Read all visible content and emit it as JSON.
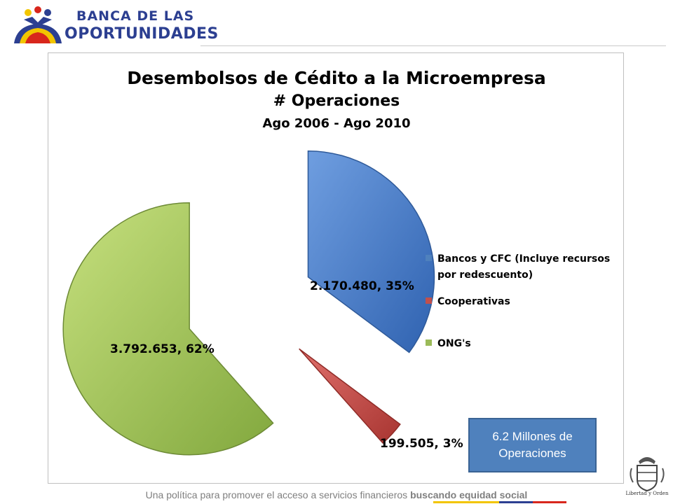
{
  "header": {
    "logo_line1": "BANCA DE LAS",
    "logo_line2": "OPORTUNIDADES"
  },
  "chart_data": {
    "type": "pie",
    "title": "Desembolsos de Cédito a la Microempresa",
    "subtitle": "# Operaciones",
    "period": "Ago 2006 - Ago 2010",
    "categories": [
      "Bancos y CFC (Incluye recursos por redescuento)",
      "Cooperativas",
      "ONG's"
    ],
    "values": [
      2170480,
      199505,
      3792653
    ],
    "percentages": [
      35,
      3,
      62
    ],
    "data_labels": [
      "2.170.480, 35%",
      "199.505, 3%",
      "3.792.653, 62%"
    ],
    "colors": [
      "#4f81bd",
      "#c0504d",
      "#9bbb59"
    ],
    "legend_position": "right",
    "exploded": true
  },
  "callout": {
    "text": "6.2 Millones de Operaciones"
  },
  "footer": {
    "text_plain": "Una política para promover el acceso a servicios financieros ",
    "text_bold": "buscando equidad social"
  },
  "seal": {
    "caption": "Libertad y Orden"
  }
}
